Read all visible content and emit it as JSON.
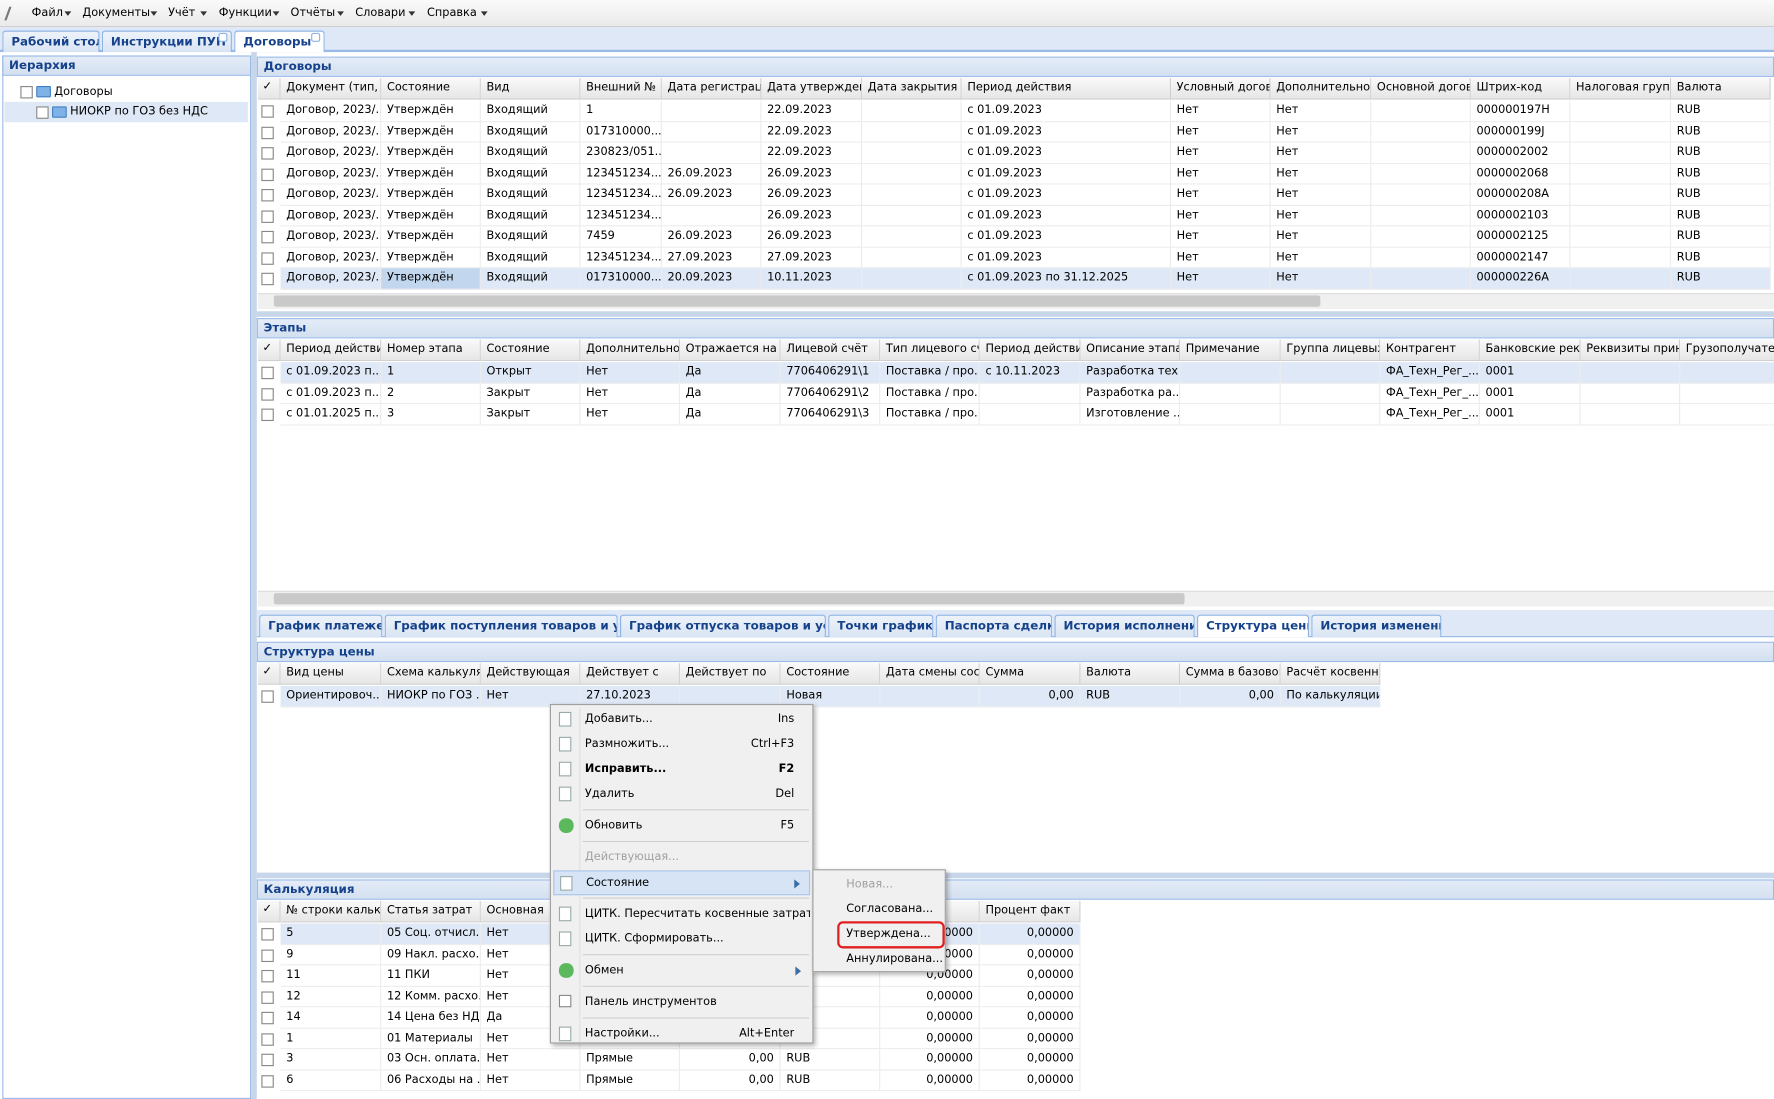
{
  "menu": [
    "Файл",
    "Документы",
    "Учёт",
    "Функции",
    "Отчёты",
    "Словари",
    "Справка"
  ],
  "tabs": [
    "Рабочий стол",
    "Инструкции ПУП",
    "Договоры"
  ],
  "hierarchy": {
    "title": "Иерархия",
    "root": "Договоры",
    "child": "НИОКР по ГОЗ без НДС"
  },
  "contracts": {
    "title": "Договоры",
    "headers": [
      "Документ (тип, №",
      "Состояние",
      "Вид",
      "Внешний №",
      "Дата регистрации",
      "Дата утверждения",
      "Дата закрытия",
      "Период действия",
      "Условный договор",
      "Дополнительное с",
      "Основной договор",
      "Штрих-код",
      "Налоговая группа",
      "Валюта"
    ],
    "rows": [
      [
        "Договор, 2023/...",
        "Утверждён",
        "Входящий",
        "1",
        null,
        "22.09.2023",
        null,
        "с 01.09.2023",
        "Нет",
        "Нет",
        null,
        "000000197Н",
        null,
        "RUB"
      ],
      [
        "Договор, 2023/...",
        "Утверждён",
        "Входящий",
        "017310000...",
        null,
        "22.09.2023",
        null,
        "с 01.09.2023",
        "Нет",
        "Нет",
        null,
        "000000199J",
        null,
        "RUB"
      ],
      [
        "Договор, 2023/...",
        "Утверждён",
        "Входящий",
        "230823/051...",
        null,
        "22.09.2023",
        null,
        "с 01.09.2023",
        "Нет",
        "Нет",
        null,
        "0000002002",
        null,
        "RUB"
      ],
      [
        "Договор, 2023/...",
        "Утверждён",
        "Входящий",
        "123451234...",
        "26.09.2023",
        "26.09.2023",
        null,
        "с 01.09.2023",
        "Нет",
        "Нет",
        null,
        "0000002068",
        null,
        "RUB"
      ],
      [
        "Договор, 2023/...",
        "Утверждён",
        "Входящий",
        "123451234...",
        "26.09.2023",
        "26.09.2023",
        null,
        "с 01.09.2023",
        "Нет",
        "Нет",
        null,
        "000000208А",
        null,
        "RUB"
      ],
      [
        "Договор, 2023/...",
        "Утверждён",
        "Входящий",
        "123451234...",
        null,
        "26.09.2023",
        null,
        "с 01.09.2023",
        "Нет",
        "Нет",
        null,
        "0000002103",
        null,
        "RUB"
      ],
      [
        "Договор, 2023/...",
        "Утверждён",
        "Входящий",
        "7459",
        "26.09.2023",
        "26.09.2023",
        null,
        "с 01.09.2023",
        "Нет",
        "Нет",
        null,
        "0000002125",
        null,
        "RUB"
      ],
      [
        "Договор, 2023/...",
        "Утверждён",
        "Входящий",
        "123451234...",
        "27.09.2023",
        "27.09.2023",
        null,
        "с 01.09.2023",
        "Нет",
        "Нет",
        null,
        "0000002147",
        null,
        "RUB"
      ],
      [
        "Договор, 2023/...",
        "Утверждён",
        "Входящий",
        "017310000...",
        "20.09.2023",
        "10.11.2023",
        null,
        "с 01.09.2023 по 31.12.2025",
        "Нет",
        "Нет",
        null,
        "000000226А",
        null,
        "RUB"
      ]
    ]
  },
  "stages": {
    "title": "Этапы",
    "headers": [
      "Период действия...",
      "Номер этапа",
      "Состояние",
      "Дополнительное с",
      "Отражается на су",
      "Лицевой счёт",
      "Тип лицевого счё",
      "Период действия",
      "Описание этапа",
      "Примечание",
      "Группа лицевых сч",
      "Контрагент",
      "Банковские рекви",
      "Реквизиты принад",
      "Грузополучатель"
    ],
    "rows": [
      [
        "с 01.09.2023 п...",
        "1",
        "Открыт",
        "Нет",
        "Да",
        "7706406291\\1",
        "Поставка / про...",
        "с 10.11.2023",
        "Разработка тех...",
        null,
        null,
        "ФА_Техн_Рег_...",
        "0001",
        null,
        null
      ],
      [
        "с 01.09.2023 п...",
        "2",
        "Закрыт",
        "Нет",
        "Да",
        "7706406291\\2",
        "Поставка / про...",
        null,
        "Разработка ра...",
        null,
        null,
        "ФА_Техн_Рег_...",
        "0001",
        null,
        null
      ],
      [
        "с 01.01.2025 п...",
        "3",
        "Закрыт",
        "Нет",
        "Да",
        "7706406291\\3",
        "Поставка / про...",
        null,
        "Изготовление ...",
        null,
        null,
        "ФА_Техн_Рег_...",
        "0001",
        null,
        null
      ]
    ]
  },
  "bottom_tabs": [
    "График платежей",
    "График поступления товаров и услуг",
    "График отпуска товаров и услуг",
    "Точки графика",
    "Паспорта сделки",
    "История исполнения",
    "Структура цены",
    "История изменений"
  ],
  "price_structure": {
    "title": "Структура цены",
    "headers": [
      "Вид цены",
      "Схема калькуляци",
      "Действующая",
      "Действует с",
      "Действует по",
      "Состояние",
      "Дата смены состоя",
      "Сумма",
      "Валюта",
      "Сумма в базовой в",
      "Расчёт косвенных"
    ],
    "rows": [
      [
        "Ориентировоч...",
        "НИОКР по ГОЗ ...",
        "Нет",
        "27.10.2023",
        null,
        "Новая",
        null,
        "0,00",
        "RUB",
        "0,00",
        "По калькуляции"
      ]
    ]
  },
  "calculation": {
    "title": "Калькуляция",
    "headers": [
      "№ строки калькул",
      "Статья затрат",
      "Основная",
      null,
      null,
      null,
      null,
      "Процент факт"
    ],
    "rows": [
      [
        "5",
        "05 Соц. отчисл...",
        "Нет",
        null,
        null,
        null,
        "0,00000",
        "0,00000"
      ],
      [
        "9",
        "09 Накл. расхо...",
        "Нет",
        null,
        null,
        null,
        "0,00000",
        "0,00000"
      ],
      [
        "11",
        "11 ПКИ",
        "Нет",
        null,
        null,
        null,
        "0,00000",
        "0,00000"
      ],
      [
        "12",
        "12 Комм. расхо...",
        "Нет",
        null,
        null,
        null,
        "0,00000",
        "0,00000"
      ],
      [
        "14",
        "14 Цена без НДС",
        "Да",
        null,
        null,
        null,
        "0,00000",
        "0,00000"
      ],
      [
        "1",
        "01 Материалы",
        "Нет",
        null,
        null,
        null,
        "0,00000",
        "0,00000"
      ],
      [
        "3",
        "03 Осн. оплата...",
        "Нет",
        "Прямые",
        "0,00",
        "RUB",
        "0,00000",
        "0,00000"
      ],
      [
        "6",
        "06 Расходы на ...",
        "Нет",
        "Прямые",
        "0,00",
        "RUB",
        "0,00000",
        "0,00000"
      ]
    ]
  },
  "context_menu": [
    {
      "label": "Добавить...",
      "shortcut": "Ins"
    },
    {
      "label": "Размножить...",
      "shortcut": "Ctrl+F3"
    },
    {
      "label": "Исправить...",
      "shortcut": "F2"
    },
    {
      "label": "Удалить",
      "shortcut": "Del"
    },
    {
      "label": "Обновить",
      "shortcut": "F5"
    },
    {
      "label": "Действующая..."
    },
    {
      "label": "Состояние"
    },
    {
      "label": "ЦИТК. Пересчитать косвенные затраты..."
    },
    {
      "label": "ЦИТК. Сформировать..."
    },
    {
      "label": "Обмен"
    },
    {
      "label": "Панель инструментов"
    },
    {
      "label": "Настройки...",
      "shortcut": "Alt+Enter"
    }
  ],
  "submenu": [
    "Новая...",
    "Согласована...",
    "Утверждена...",
    "Аннулирована..."
  ]
}
